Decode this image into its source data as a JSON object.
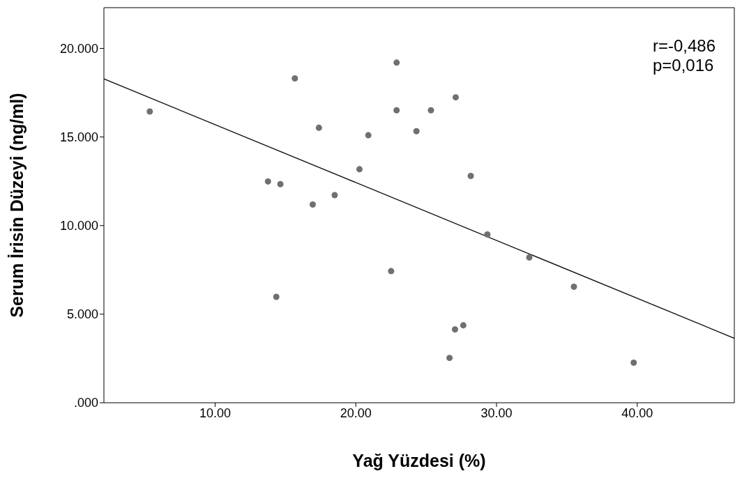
{
  "chart_data": {
    "type": "scatter",
    "xlabel": "Yağ Yüzdesi (%)",
    "ylabel": "Serum İrisin Düzeyi (ng/ml)",
    "xlim": [
      2.1,
      46.9
    ],
    "ylim": [
      0,
      22.3
    ],
    "xticks": [
      {
        "value": 10,
        "label": "10.00"
      },
      {
        "value": 20,
        "label": "20.00"
      },
      {
        "value": 30,
        "label": "30.00"
      },
      {
        "value": 40,
        "label": "40.00"
      }
    ],
    "yticks": [
      {
        "value": 0,
        "label": ".000"
      },
      {
        "value": 5,
        "label": "5.000"
      },
      {
        "value": 10,
        "label": "10.000"
      },
      {
        "value": 15,
        "label": "15.000"
      },
      {
        "value": 20,
        "label": "20.000"
      }
    ],
    "annotations": [
      "r=-0,486",
      "p=0,016"
    ],
    "series": [
      {
        "type": "scatter",
        "marker": "circle",
        "color": "#707070",
        "x": [
          5.36,
          13.76,
          14.64,
          14.35,
          15.67,
          16.94,
          17.38,
          18.5,
          20.26,
          20.89,
          22.51,
          22.9,
          22.9,
          24.31,
          25.34,
          27.1,
          27.05,
          27.64,
          26.66,
          28.17,
          29.35,
          32.33,
          35.5,
          39.75
        ],
        "values": [
          16.44,
          12.49,
          12.34,
          5.98,
          18.31,
          11.19,
          15.52,
          11.72,
          13.18,
          15.1,
          7.43,
          19.2,
          16.51,
          15.33,
          16.51,
          17.24,
          4.14,
          4.37,
          2.53,
          12.8,
          9.5,
          8.2,
          6.55,
          2.26
        ]
      },
      {
        "type": "line",
        "marker": "none",
        "color": "#1a1a1a",
        "x": [
          2.1,
          46.9
        ],
        "values": [
          18.28,
          3.64
        ]
      }
    ]
  }
}
